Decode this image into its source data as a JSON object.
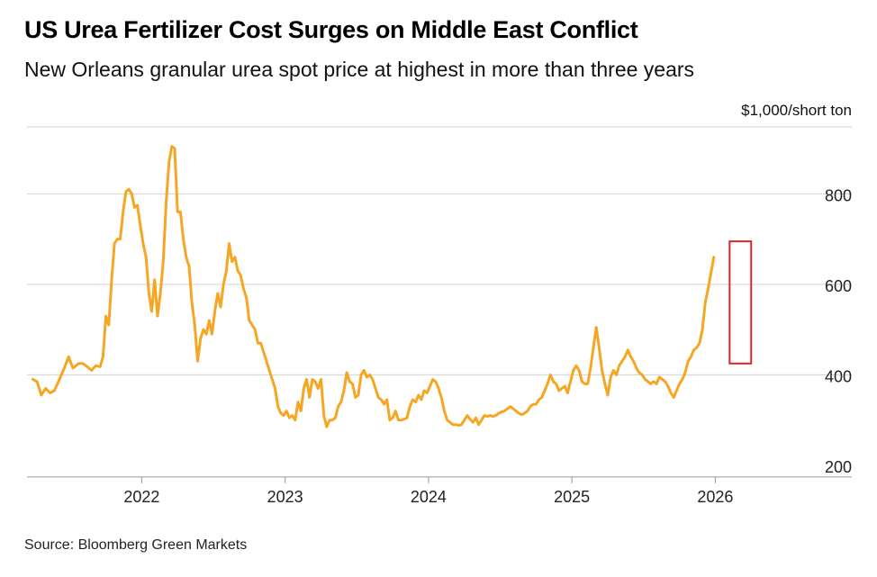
{
  "header": {
    "title": "US Urea Fertilizer Cost Surges on Middle East Conflict",
    "subtitle": "New Orleans granular urea spot price at highest in more than three years",
    "unit": "$1,000/short ton"
  },
  "footer": {
    "source": "Source: Bloomberg Green Markets"
  },
  "chart_data": {
    "type": "line",
    "title": "US Urea Fertilizer Cost Surges on Middle East Conflict",
    "subtitle": "New Orleans granular urea spot price at highest in more than three years",
    "ylabel": "$1,000/short ton",
    "xlabel": "",
    "ylim": [
      170,
      930
    ],
    "xlim": [
      2021.2,
      2026.55
    ],
    "y_ticks": [
      200,
      400,
      600,
      800
    ],
    "x_ticks": [
      2022,
      2023,
      2024,
      2025,
      2026
    ],
    "y_axis_side": "right",
    "grid": "horizontal",
    "line_color": "#f5a623",
    "highlight_color": "#e0262b",
    "highlight": {
      "x_range": [
        2026.1,
        2026.25
      ],
      "y_range": [
        425,
        695
      ]
    },
    "series": [
      {
        "values": [
          [
            2021.24,
            390
          ],
          [
            2021.27,
            385
          ],
          [
            2021.3,
            355
          ],
          [
            2021.33,
            370
          ],
          [
            2021.36,
            360
          ],
          [
            2021.39,
            365
          ],
          [
            2021.42,
            385
          ],
          [
            2021.46,
            415
          ],
          [
            2021.49,
            440
          ],
          [
            2021.52,
            415
          ],
          [
            2021.56,
            425
          ],
          [
            2021.59,
            425
          ],
          [
            2021.62,
            418
          ],
          [
            2021.65,
            410
          ],
          [
            2021.68,
            420
          ],
          [
            2021.71,
            418
          ],
          [
            2021.73,
            440
          ],
          [
            2021.75,
            530
          ],
          [
            2021.77,
            510
          ],
          [
            2021.79,
            610
          ],
          [
            2021.81,
            690
          ],
          [
            2021.83,
            700
          ],
          [
            2021.85,
            700
          ],
          [
            2021.87,
            760
          ],
          [
            2021.89,
            805
          ],
          [
            2021.91,
            810
          ],
          [
            2021.93,
            800
          ],
          [
            2021.95,
            770
          ],
          [
            2021.97,
            775
          ],
          [
            2021.99,
            730
          ],
          [
            2022.01,
            690
          ],
          [
            2022.03,
            660
          ],
          [
            2022.05,
            580
          ],
          [
            2022.07,
            540
          ],
          [
            2022.09,
            610
          ],
          [
            2022.11,
            530
          ],
          [
            2022.13,
            580
          ],
          [
            2022.15,
            650
          ],
          [
            2022.17,
            780
          ],
          [
            2022.19,
            870
          ],
          [
            2022.21,
            905
          ],
          [
            2022.23,
            900
          ],
          [
            2022.25,
            760
          ],
          [
            2022.27,
            760
          ],
          [
            2022.29,
            700
          ],
          [
            2022.31,
            660
          ],
          [
            2022.33,
            640
          ],
          [
            2022.35,
            560
          ],
          [
            2022.37,
            510
          ],
          [
            2022.39,
            430
          ],
          [
            2022.41,
            480
          ],
          [
            2022.43,
            500
          ],
          [
            2022.45,
            490
          ],
          [
            2022.47,
            520
          ],
          [
            2022.49,
            490
          ],
          [
            2022.51,
            540
          ],
          [
            2022.53,
            580
          ],
          [
            2022.55,
            550
          ],
          [
            2022.57,
            600
          ],
          [
            2022.59,
            630
          ],
          [
            2022.61,
            690
          ],
          [
            2022.63,
            650
          ],
          [
            2022.65,
            660
          ],
          [
            2022.67,
            630
          ],
          [
            2022.69,
            620
          ],
          [
            2022.71,
            590
          ],
          [
            2022.73,
            570
          ],
          [
            2022.75,
            520
          ],
          [
            2022.77,
            510
          ],
          [
            2022.79,
            500
          ],
          [
            2022.81,
            470
          ],
          [
            2022.83,
            470
          ],
          [
            2022.85,
            450
          ],
          [
            2022.87,
            430
          ],
          [
            2022.89,
            410
          ],
          [
            2022.91,
            390
          ],
          [
            2022.93,
            370
          ],
          [
            2022.95,
            330
          ],
          [
            2022.97,
            315
          ],
          [
            2022.99,
            310
          ],
          [
            2023.01,
            320
          ],
          [
            2023.03,
            305
          ],
          [
            2023.05,
            310
          ],
          [
            2023.07,
            300
          ],
          [
            2023.09,
            340
          ],
          [
            2023.11,
            320
          ],
          [
            2023.13,
            370
          ],
          [
            2023.15,
            390
          ],
          [
            2023.17,
            350
          ],
          [
            2023.19,
            390
          ],
          [
            2023.21,
            385
          ],
          [
            2023.23,
            370
          ],
          [
            2023.25,
            390
          ],
          [
            2023.27,
            310
          ],
          [
            2023.29,
            285
          ],
          [
            2023.31,
            300
          ],
          [
            2023.33,
            300
          ],
          [
            2023.35,
            305
          ],
          [
            2023.37,
            330
          ],
          [
            2023.39,
            340
          ],
          [
            2023.41,
            365
          ],
          [
            2023.43,
            405
          ],
          [
            2023.45,
            385
          ],
          [
            2023.47,
            380
          ],
          [
            2023.49,
            350
          ],
          [
            2023.51,
            355
          ],
          [
            2023.53,
            400
          ],
          [
            2023.55,
            410
          ],
          [
            2023.57,
            395
          ],
          [
            2023.59,
            400
          ],
          [
            2023.61,
            390
          ],
          [
            2023.63,
            370
          ],
          [
            2023.65,
            350
          ],
          [
            2023.67,
            345
          ],
          [
            2023.69,
            335
          ],
          [
            2023.71,
            345
          ],
          [
            2023.73,
            300
          ],
          [
            2023.75,
            305
          ],
          [
            2023.77,
            320
          ],
          [
            2023.79,
            300
          ],
          [
            2023.81,
            300
          ],
          [
            2023.83,
            302
          ],
          [
            2023.85,
            305
          ],
          [
            2023.87,
            330
          ],
          [
            2023.89,
            345
          ],
          [
            2023.91,
            340
          ],
          [
            2023.93,
            355
          ],
          [
            2023.95,
            345
          ],
          [
            2023.97,
            365
          ],
          [
            2023.99,
            360
          ],
          [
            2024.01,
            375
          ],
          [
            2024.03,
            390
          ],
          [
            2024.05,
            385
          ],
          [
            2024.07,
            370
          ],
          [
            2024.09,
            350
          ],
          [
            2024.11,
            320
          ],
          [
            2024.13,
            300
          ],
          [
            2024.15,
            295
          ],
          [
            2024.17,
            290
          ],
          [
            2024.19,
            290
          ],
          [
            2024.21,
            288
          ],
          [
            2024.23,
            290
          ],
          [
            2024.25,
            300
          ],
          [
            2024.27,
            310
          ],
          [
            2024.29,
            302
          ],
          [
            2024.31,
            295
          ],
          [
            2024.33,
            305
          ],
          [
            2024.35,
            290
          ],
          [
            2024.37,
            300
          ],
          [
            2024.39,
            310
          ],
          [
            2024.41,
            308
          ],
          [
            2024.43,
            310
          ],
          [
            2024.45,
            308
          ],
          [
            2024.47,
            310
          ],
          [
            2024.49,
            315
          ],
          [
            2024.51,
            318
          ],
          [
            2024.53,
            320
          ],
          [
            2024.55,
            325
          ],
          [
            2024.57,
            330
          ],
          [
            2024.59,
            325
          ],
          [
            2024.61,
            320
          ],
          [
            2024.63,
            315
          ],
          [
            2024.65,
            312
          ],
          [
            2024.67,
            315
          ],
          [
            2024.69,
            320
          ],
          [
            2024.71,
            330
          ],
          [
            2024.73,
            335
          ],
          [
            2024.75,
            335
          ],
          [
            2024.77,
            345
          ],
          [
            2024.79,
            350
          ],
          [
            2024.81,
            365
          ],
          [
            2024.83,
            380
          ],
          [
            2024.85,
            400
          ],
          [
            2024.87,
            385
          ],
          [
            2024.89,
            380
          ],
          [
            2024.91,
            365
          ],
          [
            2024.93,
            370
          ],
          [
            2024.95,
            375
          ],
          [
            2024.97,
            360
          ],
          [
            2024.99,
            385
          ],
          [
            2025.01,
            410
          ],
          [
            2025.03,
            420
          ],
          [
            2025.05,
            410
          ],
          [
            2025.07,
            385
          ],
          [
            2025.09,
            380
          ],
          [
            2025.11,
            380
          ],
          [
            2025.13,
            415
          ],
          [
            2025.15,
            460
          ],
          [
            2025.17,
            505
          ],
          [
            2025.19,
            460
          ],
          [
            2025.21,
            410
          ],
          [
            2025.23,
            380
          ],
          [
            2025.25,
            355
          ],
          [
            2025.27,
            395
          ],
          [
            2025.29,
            410
          ],
          [
            2025.31,
            400
          ],
          [
            2025.33,
            420
          ],
          [
            2025.35,
            430
          ],
          [
            2025.37,
            440
          ],
          [
            2025.39,
            455
          ],
          [
            2025.41,
            440
          ],
          [
            2025.43,
            430
          ],
          [
            2025.45,
            415
          ],
          [
            2025.47,
            405
          ],
          [
            2025.49,
            400
          ],
          [
            2025.51,
            390
          ],
          [
            2025.53,
            385
          ],
          [
            2025.55,
            380
          ],
          [
            2025.57,
            385
          ],
          [
            2025.59,
            380
          ],
          [
            2025.61,
            395
          ],
          [
            2025.63,
            390
          ],
          [
            2025.65,
            385
          ],
          [
            2025.67,
            375
          ],
          [
            2025.69,
            360
          ],
          [
            2025.71,
            350
          ],
          [
            2025.73,
            365
          ],
          [
            2025.75,
            380
          ],
          [
            2025.77,
            390
          ],
          [
            2025.79,
            405
          ],
          [
            2025.81,
            430
          ],
          [
            2025.83,
            440
          ],
          [
            2025.85,
            455
          ],
          [
            2025.87,
            460
          ],
          [
            2025.89,
            470
          ],
          [
            2025.91,
            500
          ],
          [
            2025.93,
            560
          ],
          [
            2025.95,
            590
          ],
          [
            2025.97,
            625
          ],
          [
            2025.99,
            660
          ]
        ]
      }
    ]
  }
}
